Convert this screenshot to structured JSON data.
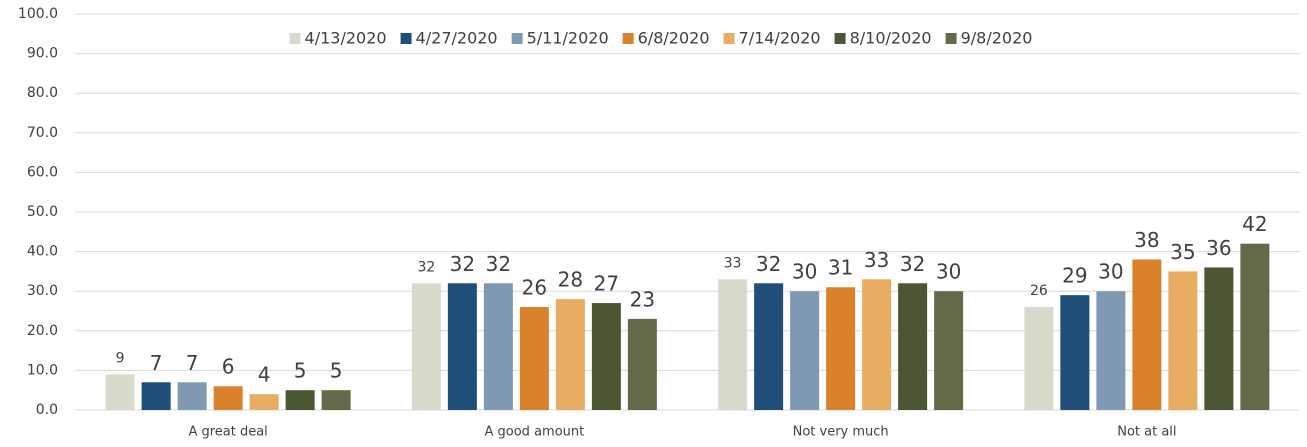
{
  "chart_data": {
    "type": "bar",
    "categories": [
      "A great deal",
      "A good amount",
      "Not very much",
      "Not at all"
    ],
    "series": [
      {
        "name": "4/13/2020",
        "color": "#d9d9cc",
        "values": [
          9,
          32,
          33,
          26
        ]
      },
      {
        "name": "4/27/2020",
        "color": "#1f4e79",
        "values": [
          7,
          32,
          32,
          29
        ]
      },
      {
        "name": "5/11/2020",
        "color": "#7f99b2",
        "values": [
          7,
          32,
          30,
          30
        ]
      },
      {
        "name": "6/8/2020",
        "color": "#d9822b",
        "values": [
          6,
          26,
          31,
          38
        ]
      },
      {
        "name": "7/14/2020",
        "color": "#e8ad63",
        "values": [
          4,
          28,
          33,
          35
        ]
      },
      {
        "name": "8/10/2020",
        "color": "#4b5632",
        "values": [
          5,
          27,
          32,
          36
        ]
      },
      {
        "name": "9/8/2020",
        "color": "#636a4a",
        "values": [
          5,
          23,
          30,
          42
        ]
      }
    ],
    "ylim": [
      0,
      100
    ],
    "yticks": [
      {
        "value": 0,
        "label": "0.0"
      },
      {
        "value": 10,
        "label": "10.0"
      },
      {
        "value": 20,
        "label": "20.0"
      },
      {
        "value": 30,
        "label": "30.0"
      },
      {
        "value": 40,
        "label": "40.0"
      },
      {
        "value": 50,
        "label": "50.0"
      },
      {
        "value": 60,
        "label": "60.0"
      },
      {
        "value": 70,
        "label": "70.0"
      },
      {
        "value": 80,
        "label": "80.0"
      },
      {
        "value": 90,
        "label": "90.0"
      },
      {
        "value": 100,
        "label": "100.0"
      }
    ],
    "grid": true,
    "legend": "top"
  }
}
